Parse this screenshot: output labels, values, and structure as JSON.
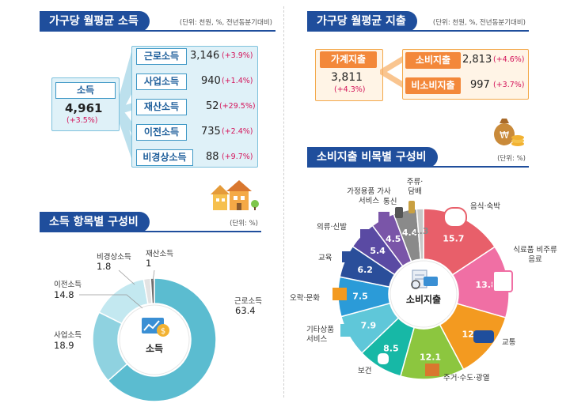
{
  "income_monthly": {
    "title": "가구당 월평균 소득",
    "unit": "(단위: 천원, %, 전년동분기대비)",
    "total": {
      "label": "소득",
      "value": "4,961",
      "change": "(+3.5%)"
    },
    "items": [
      {
        "label": "근로소득",
        "value": "3,146",
        "change": "(+3.9%)"
      },
      {
        "label": "사업소득",
        "value": "940",
        "change": "(+1.4%)"
      },
      {
        "label": "재산소득",
        "value": "52",
        "change": "(+29.5%)"
      },
      {
        "label": "이전소득",
        "value": "735",
        "change": "(+2.4%)"
      },
      {
        "label": "비경상소득",
        "value": "88",
        "change": "(+9.7%)"
      }
    ]
  },
  "expenditure_monthly": {
    "title": "가구당 월평균 지출",
    "unit": "(단위: 천원, %, 전년동분기대비)",
    "total": {
      "label": "가계지출",
      "value": "3,811",
      "change": "(+4.3%)"
    },
    "items": [
      {
        "label": "소비지출",
        "value": "2,813",
        "change": "(+4.6%)"
      },
      {
        "label": "비소비지출",
        "value": "997",
        "change": "(+3.7%)"
      }
    ]
  },
  "income_comp": {
    "title": "소득 항목별 구성비",
    "unit": "(단위: %)",
    "center": "소득"
  },
  "consumption_comp": {
    "title": "소비지출 비목별 구성비",
    "unit": "(단위: %)",
    "center": "소비지출"
  },
  "colors": {
    "navy": "#1f4e9c",
    "accent_cyan": "#3d97c5",
    "orange": "#f3883a",
    "change_red": "#d4145a"
  },
  "chart_data": [
    {
      "type": "pie",
      "title": "소득 항목별 구성비",
      "categories": [
        "근로소득",
        "사업소득",
        "이전소득",
        "비경상소득",
        "재산소득"
      ],
      "values": [
        63.4,
        18.9,
        14.8,
        1.8,
        1.0
      ],
      "colors": [
        "#5bbcd0",
        "#8fd2e0",
        "#c3e8f0",
        "#e3e3e3",
        "#6f6f6f"
      ]
    },
    {
      "type": "pie",
      "title": "소비지출 비목별 구성비",
      "categories": [
        "음식·숙박",
        "식료품 비주류음료",
        "교통",
        "주거·수도·광열",
        "보건",
        "기타상품 서비스",
        "오락·문화",
        "교육",
        "의류·신발",
        "가정용품 가사서비스",
        "통신",
        "주류·담배"
      ],
      "values": [
        15.7,
        13.8,
        12.8,
        12.1,
        8.5,
        7.9,
        7.5,
        6.2,
        5.4,
        4.5,
        4.4,
        1.3
      ],
      "colors": [
        "#e85f6a",
        "#f06fa4",
        "#f39a20",
        "#8cc63f",
        "#17b8a6",
        "#5fc7d9",
        "#2b9bd8",
        "#2a4e9a",
        "#5a4aa3",
        "#7a55a8",
        "#8a8a8a",
        "#c8c8c8"
      ]
    }
  ]
}
